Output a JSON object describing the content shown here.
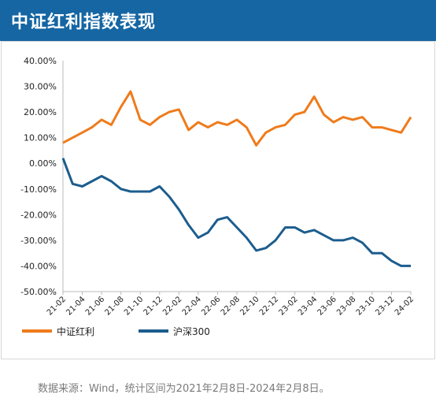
{
  "header": {
    "title": "中证红利指数表现"
  },
  "source_note": "数据来源：Wind，统计区间为2021年2月8日-2024年2月8日。",
  "colors": {
    "header_bg": "#1566a3",
    "series1": "#ef7b1b",
    "series2": "#1c5d8e"
  },
  "chart_data": {
    "type": "line",
    "title": "",
    "xlabel": "",
    "ylabel": "",
    "ylim": [
      -50,
      40
    ],
    "y_ticks": [
      "40.00%",
      "30.00%",
      "20.00%",
      "10.00%",
      "0.00%",
      "-10.00%",
      "-20.00%",
      "-30.00%",
      "-40.00%",
      "-50.00%"
    ],
    "x_ticks": [
      "21-02",
      "21-04",
      "21-06",
      "21-08",
      "21-10",
      "21-12",
      "22-02",
      "22-04",
      "22-06",
      "22-08",
      "22-10",
      "22-12",
      "23-02",
      "23-04",
      "23-06",
      "23-08",
      "23-10",
      "23-12",
      "24-02"
    ],
    "grid": false,
    "legend": "bottom",
    "x": [
      "21-02",
      "21-03",
      "21-04",
      "21-05",
      "21-06",
      "21-07",
      "21-08",
      "21-09",
      "21-10",
      "21-11",
      "21-12",
      "22-01",
      "22-02",
      "22-03",
      "22-04",
      "22-05",
      "22-06",
      "22-07",
      "22-08",
      "22-09",
      "22-10",
      "22-11",
      "22-12",
      "23-01",
      "23-02",
      "23-03",
      "23-04",
      "23-05",
      "23-06",
      "23-07",
      "23-08",
      "23-09",
      "23-10",
      "23-11",
      "23-12",
      "24-01",
      "24-02"
    ],
    "series": [
      {
        "name": "中证红利",
        "values": [
          8,
          10,
          12,
          14,
          17,
          15,
          22,
          28,
          17,
          15,
          18,
          20,
          21,
          13,
          16,
          14,
          16,
          15,
          17,
          14,
          7,
          12,
          14,
          15,
          19,
          20,
          26,
          19,
          16,
          18,
          17,
          18,
          14,
          14,
          13,
          12,
          18
        ]
      },
      {
        "name": "沪深300",
        "values": [
          2,
          -8,
          -9,
          -7,
          -5,
          -7,
          -10,
          -11,
          -11,
          -11,
          -9,
          -13,
          -18,
          -24,
          -29,
          -27,
          -22,
          -21,
          -25,
          -29,
          -34,
          -33,
          -30,
          -25,
          -25,
          -27,
          -26,
          -28,
          -30,
          -30,
          -29,
          -31,
          -35,
          -35,
          -38,
          -40,
          -40
        ]
      }
    ]
  }
}
